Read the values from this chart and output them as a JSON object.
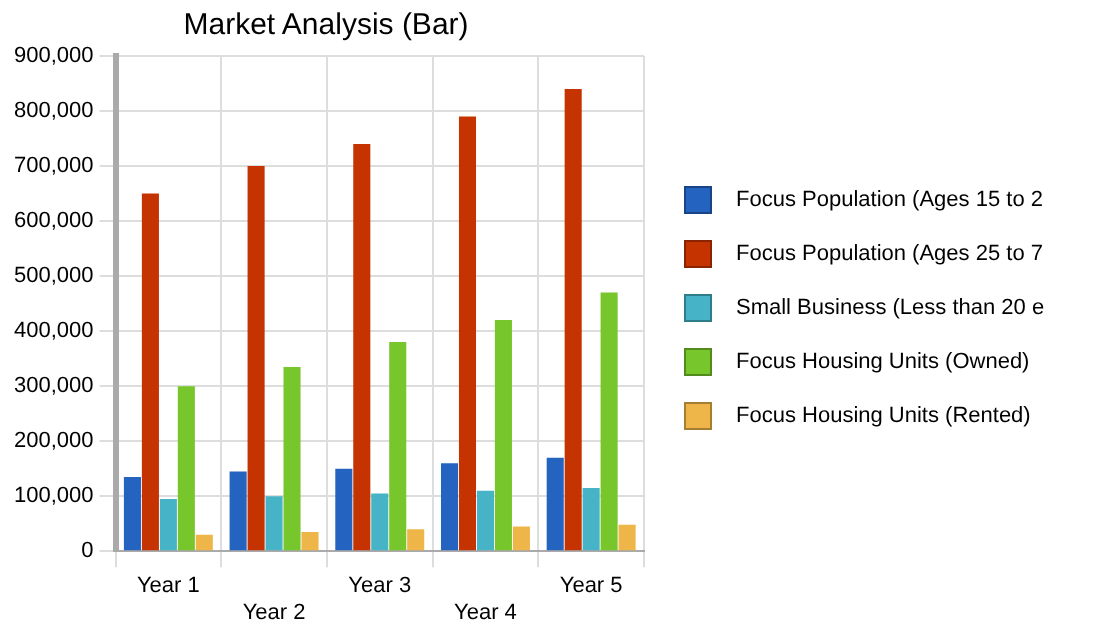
{
  "chart_data": {
    "type": "bar",
    "title": "Market Analysis (Bar)",
    "categories": [
      "Year 1",
      "Year 2",
      "Year 3",
      "Year 4",
      "Year 5"
    ],
    "series": [
      {
        "name": "Focus Population (Ages 15 to 2",
        "color": "#2563c0",
        "values": [
          135000,
          145000,
          150000,
          160000,
          170000
        ]
      },
      {
        "name": "Focus Population (Ages 25 to 7",
        "color": "#c53300",
        "values": [
          650000,
          700000,
          740000,
          790000,
          840000
        ]
      },
      {
        "name": "Small Business (Less than 20 e",
        "color": "#46b3c6",
        "values": [
          95000,
          100000,
          105000,
          110000,
          115000
        ]
      },
      {
        "name": "Focus Housing Units (Owned)",
        "color": "#77c62b",
        "values": [
          300000,
          335000,
          380000,
          420000,
          470000
        ]
      },
      {
        "name": "Focus Housing Units (Rented)",
        "color": "#eeb548",
        "values": [
          30000,
          35000,
          40000,
          45000,
          48000
        ]
      }
    ],
    "ylim": [
      0,
      900000
    ],
    "yticks": [
      0,
      {
        "value": 100000,
        "label": "100,000"
      },
      {
        "value": 200000,
        "label": "200,000"
      },
      {
        "value": 300000,
        "label": "300,000"
      },
      {
        "value": 400000,
        "label": "400,000"
      },
      {
        "value": 500000,
        "label": "500,000"
      },
      {
        "value": 600000,
        "label": "600,000"
      },
      {
        "value": 700000,
        "label": "700,000"
      },
      {
        "value": 800000,
        "label": "800,000"
      },
      {
        "value": 900000,
        "label": "900,000"
      }
    ],
    "grid": true,
    "legend": "right"
  }
}
